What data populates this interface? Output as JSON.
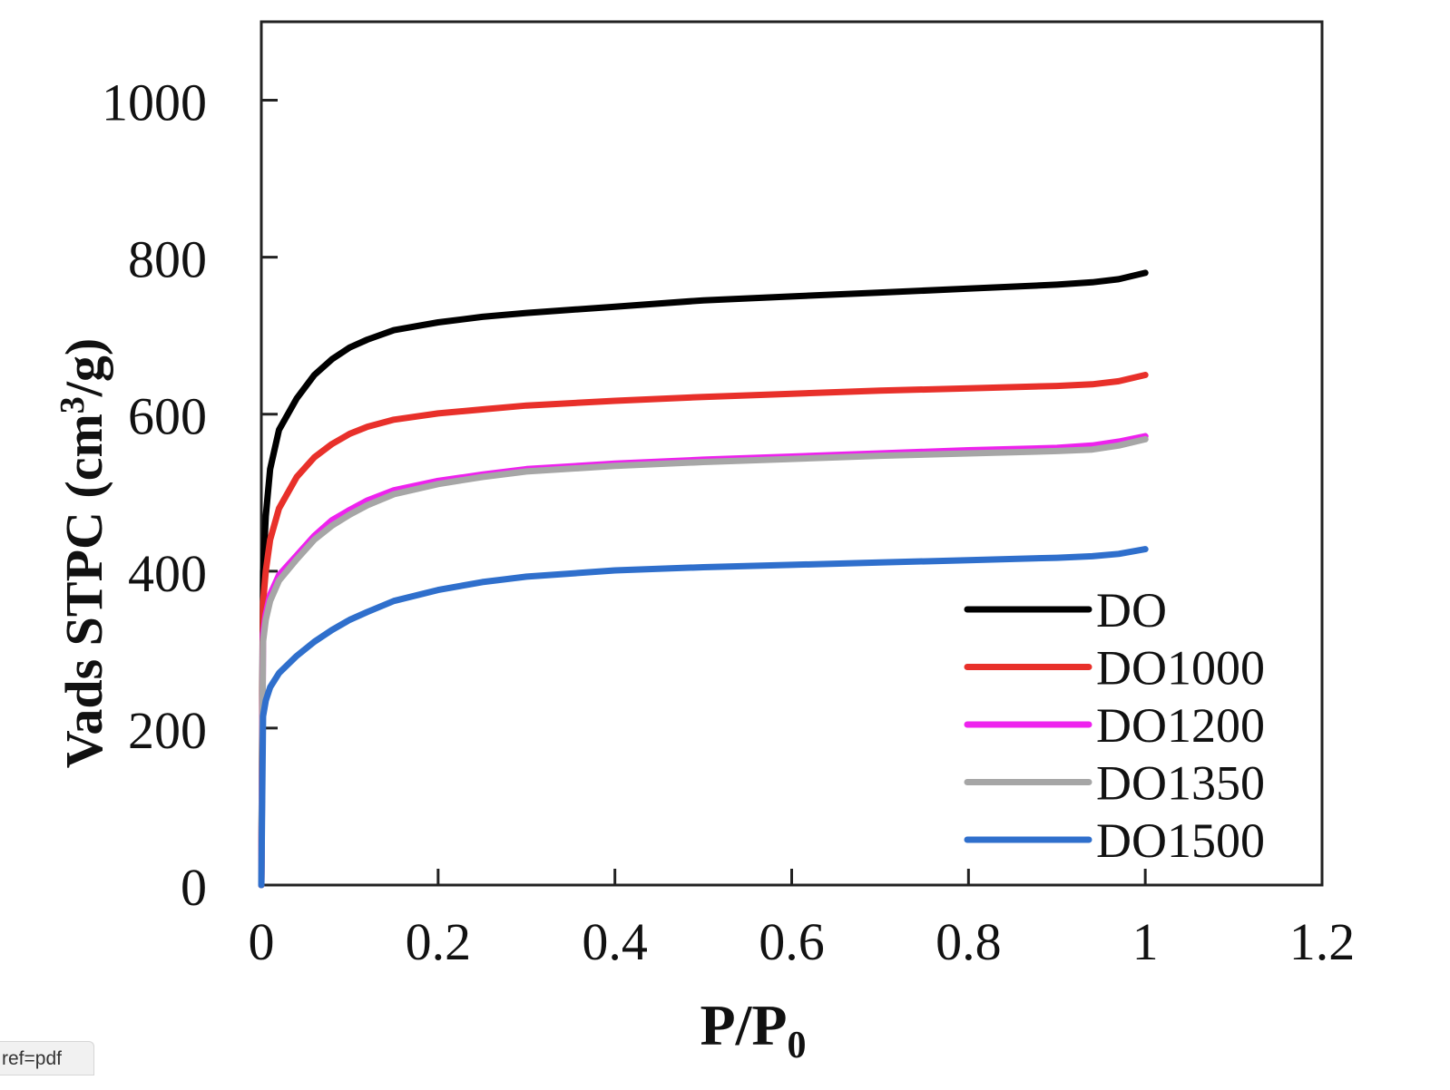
{
  "chart_data": {
    "type": "line",
    "xlabel_main": "P/P",
    "xlabel_sub": "0",
    "ylabel_pre": "Vads STPC (cm",
    "ylabel_sup": "3",
    "ylabel_post": "/g)",
    "xlim": [
      0,
      1.2
    ],
    "ylim": [
      0,
      1100
    ],
    "x_ticks": [
      0,
      0.2,
      0.4,
      0.6,
      0.8,
      1,
      1.2
    ],
    "x_tick_labels": [
      "0",
      "0.2",
      "0.4",
      "0.6",
      "0.8",
      "1",
      "1.2"
    ],
    "y_ticks": [
      0,
      200,
      400,
      600,
      800,
      1000
    ],
    "y_tick_labels": [
      "0",
      "200",
      "400",
      "600",
      "800",
      "1000"
    ],
    "grid": false,
    "legend_position": "bottom-right",
    "series": [
      {
        "name": "DO",
        "color": "#000000",
        "x": [
          0,
          0.002,
          0.005,
          0.01,
          0.02,
          0.04,
          0.06,
          0.08,
          0.1,
          0.12,
          0.15,
          0.2,
          0.25,
          0.3,
          0.4,
          0.5,
          0.6,
          0.7,
          0.8,
          0.9,
          0.94,
          0.97,
          1.0
        ],
        "y": [
          0,
          400,
          470,
          530,
          580,
          620,
          650,
          670,
          685,
          695,
          707,
          717,
          724,
          729,
          737,
          745,
          750,
          755,
          760,
          765,
          768,
          772,
          780
        ]
      },
      {
        "name": "DO1000",
        "color": "#e8302a",
        "x": [
          0,
          0.002,
          0.005,
          0.01,
          0.02,
          0.04,
          0.06,
          0.08,
          0.1,
          0.12,
          0.15,
          0.2,
          0.25,
          0.3,
          0.4,
          0.5,
          0.6,
          0.7,
          0.8,
          0.9,
          0.94,
          0.97,
          1.0
        ],
        "y": [
          0,
          360,
          400,
          440,
          480,
          520,
          545,
          562,
          575,
          584,
          593,
          601,
          606,
          611,
          617,
          622,
          626,
          630,
          633,
          636,
          638,
          642,
          650
        ]
      },
      {
        "name": "DO1200",
        "color": "#ee22ee",
        "x": [
          0,
          0.002,
          0.005,
          0.01,
          0.02,
          0.04,
          0.06,
          0.08,
          0.1,
          0.12,
          0.15,
          0.2,
          0.25,
          0.3,
          0.4,
          0.5,
          0.6,
          0.7,
          0.8,
          0.9,
          0.94,
          0.97,
          1.0
        ],
        "y": [
          0,
          320,
          345,
          370,
          395,
          420,
          445,
          465,
          478,
          490,
          503,
          515,
          523,
          530,
          537,
          542,
          546,
          550,
          554,
          557,
          560,
          565,
          572
        ]
      },
      {
        "name": "DO1350",
        "color": "#a6a6a6",
        "x": [
          0,
          0.002,
          0.005,
          0.01,
          0.02,
          0.04,
          0.06,
          0.08,
          0.1,
          0.12,
          0.15,
          0.2,
          0.25,
          0.3,
          0.4,
          0.5,
          0.6,
          0.7,
          0.8,
          0.9,
          0.94,
          0.97,
          1.0
        ],
        "y": [
          0,
          310,
          338,
          362,
          388,
          415,
          440,
          458,
          472,
          484,
          498,
          511,
          520,
          527,
          534,
          539,
          543,
          547,
          550,
          553,
          555,
          560,
          568
        ]
      },
      {
        "name": "DO1500",
        "color": "#2f6fcc",
        "x": [
          0,
          0.002,
          0.005,
          0.01,
          0.02,
          0.04,
          0.06,
          0.08,
          0.1,
          0.12,
          0.15,
          0.2,
          0.25,
          0.3,
          0.4,
          0.5,
          0.6,
          0.7,
          0.8,
          0.9,
          0.94,
          0.97,
          1.0
        ],
        "y": [
          0,
          215,
          235,
          252,
          270,
          292,
          310,
          325,
          338,
          348,
          362,
          376,
          386,
          393,
          401,
          405,
          408,
          411,
          414,
          417,
          419,
          422,
          428
        ]
      }
    ]
  },
  "footer": {
    "url_tag": "ref=pdf"
  }
}
